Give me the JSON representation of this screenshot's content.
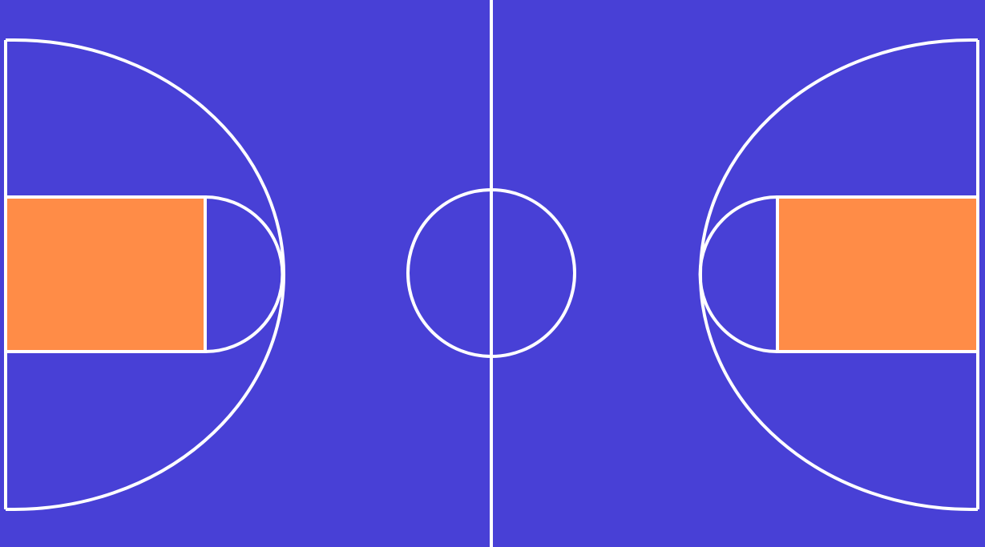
{
  "court": {
    "colors": {
      "floor": "#4840D6",
      "lines": "#FFFFFF",
      "key_paint": "#FF8C47"
    }
  }
}
